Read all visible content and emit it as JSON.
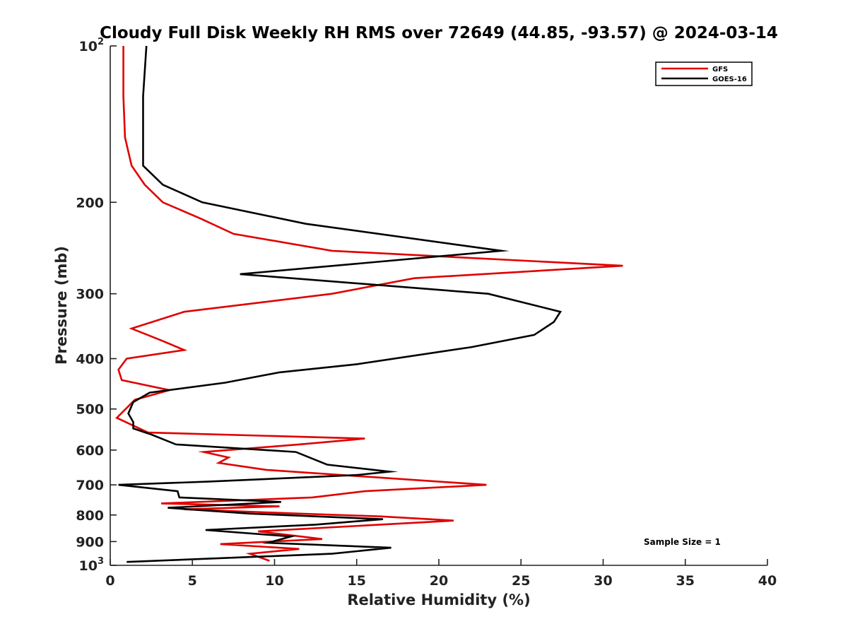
{
  "chart_data": {
    "type": "line",
    "title": "Cloudy Full Disk Weekly RH RMS over 72649 (44.85, -93.57) @ 2024-03-14",
    "xlabel": "Relative Humidity (%)",
    "ylabel": "Pressure (mb)",
    "xlim": [
      0,
      40
    ],
    "ylim": [
      100,
      1000
    ],
    "y_scale": "log",
    "y_reversed": true,
    "x_ticks": [
      "0",
      "5",
      "10",
      "15",
      "20",
      "25",
      "30",
      "35",
      "40"
    ],
    "y_ticks": [
      {
        "value": 100,
        "base": "10",
        "exp": "2"
      },
      {
        "value": 200,
        "label": "200"
      },
      {
        "value": 300,
        "label": "300"
      },
      {
        "value": 400,
        "label": "400"
      },
      {
        "value": 500,
        "label": "500"
      },
      {
        "value": 600,
        "label": "600"
      },
      {
        "value": 700,
        "label": "700"
      },
      {
        "value": 800,
        "label": "800"
      },
      {
        "value": 900,
        "label": "900"
      },
      {
        "value": 1000,
        "base": "10",
        "exp": "3"
      }
    ],
    "legend_position": "top-right",
    "grid": false,
    "annotation": "Sample Size = 1",
    "series": [
      {
        "name": "GFS",
        "color": "#e00000",
        "points": [
          [
            0.8,
            100
          ],
          [
            0.8,
            125
          ],
          [
            0.9,
            150
          ],
          [
            1.3,
            170
          ],
          [
            2.1,
            185
          ],
          [
            3.2,
            200
          ],
          [
            5.5,
            215
          ],
          [
            7.5,
            230
          ],
          [
            13.5,
            248
          ],
          [
            31.2,
            265
          ],
          [
            18.5,
            280
          ],
          [
            13.5,
            300
          ],
          [
            4.5,
            325
          ],
          [
            1.3,
            350
          ],
          [
            3.2,
            370
          ],
          [
            4.5,
            385
          ],
          [
            1.0,
            400
          ],
          [
            0.5,
            420
          ],
          [
            0.7,
            440
          ],
          [
            3.6,
            460
          ],
          [
            1.5,
            480
          ],
          [
            0.4,
            520
          ],
          [
            2.3,
            555
          ],
          [
            15.5,
            570
          ],
          [
            11.5,
            585
          ],
          [
            5.7,
            605
          ],
          [
            7.2,
            620
          ],
          [
            6.6,
            635
          ],
          [
            9.5,
            655
          ],
          [
            22.9,
            700
          ],
          [
            15.5,
            720
          ],
          [
            12.3,
            740
          ],
          [
            3.1,
            760
          ],
          [
            10.3,
            770
          ],
          [
            4.5,
            780
          ],
          [
            11.5,
            795
          ],
          [
            16.5,
            805
          ],
          [
            20.9,
            820
          ],
          [
            9.0,
            860
          ],
          [
            12.9,
            890
          ],
          [
            6.7,
            910
          ],
          [
            11.5,
            930
          ],
          [
            8.5,
            950
          ],
          [
            9.7,
            980
          ]
        ]
      },
      {
        "name": "GOES-16",
        "color": "#000000",
        "points": [
          [
            2.2,
            100
          ],
          [
            2.0,
            125
          ],
          [
            2.0,
            150
          ],
          [
            2.0,
            170
          ],
          [
            3.2,
            185
          ],
          [
            5.6,
            200
          ],
          [
            11.9,
            220
          ],
          [
            23.8,
            248
          ],
          [
            7.9,
            275
          ],
          [
            23.0,
            300
          ],
          [
            27.4,
            325
          ],
          [
            27.0,
            340
          ],
          [
            25.8,
            360
          ],
          [
            22.0,
            380
          ],
          [
            15.0,
            410
          ],
          [
            10.3,
            425
          ],
          [
            7.0,
            445
          ],
          [
            2.4,
            465
          ],
          [
            1.4,
            485
          ],
          [
            1.1,
            510
          ],
          [
            1.4,
            530
          ],
          [
            1.4,
            545
          ],
          [
            2.5,
            560
          ],
          [
            4.0,
            585
          ],
          [
            11.3,
            605
          ],
          [
            13.2,
            640
          ],
          [
            17.0,
            660
          ],
          [
            15.0,
            670
          ],
          [
            5.9,
            690
          ],
          [
            0.5,
            700
          ],
          [
            4.1,
            720
          ],
          [
            4.2,
            740
          ],
          [
            10.4,
            755
          ],
          [
            3.5,
            775
          ],
          [
            8.5,
            795
          ],
          [
            16.6,
            815
          ],
          [
            12.5,
            835
          ],
          [
            5.8,
            855
          ],
          [
            11.0,
            880
          ],
          [
            9.6,
            905
          ],
          [
            17.1,
            925
          ],
          [
            13.5,
            950
          ],
          [
            1.0,
            985
          ]
        ]
      }
    ]
  }
}
